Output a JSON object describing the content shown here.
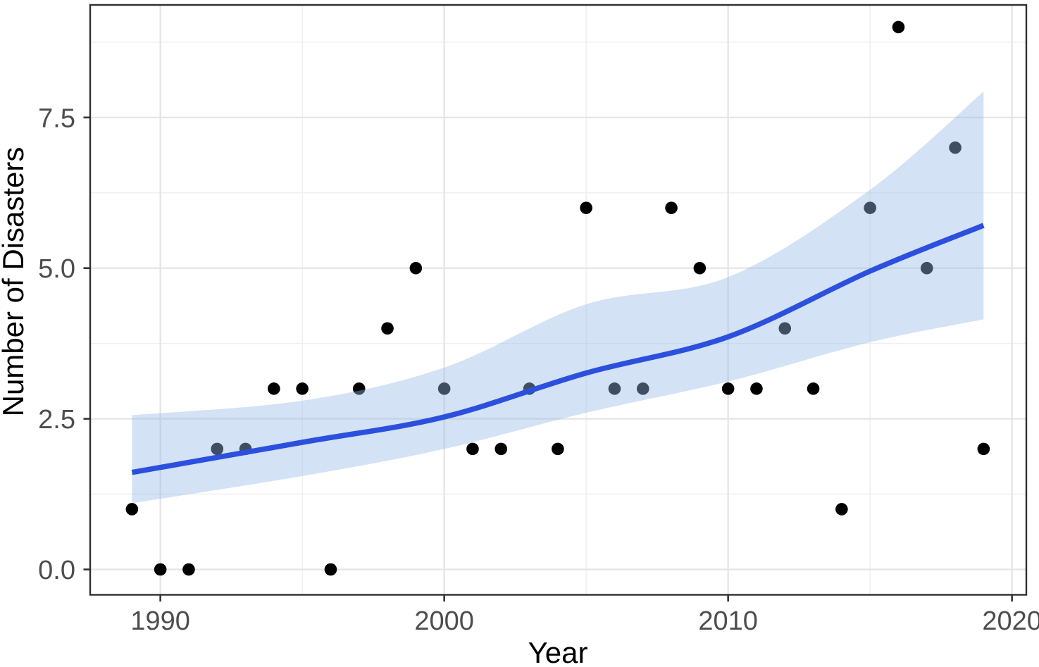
{
  "chart_data": {
    "type": "scatter",
    "title": "",
    "xlabel": "Year",
    "ylabel": "Number of Disasters",
    "x_tick_labels": [
      "1990",
      "2000",
      "2010",
      "2020"
    ],
    "x_tick_values": [
      1990,
      2000,
      2010,
      2020
    ],
    "x_minor_gridlines": [
      1995,
      2005,
      2015
    ],
    "y_tick_labels": [
      "0.0",
      "2.5",
      "5.0",
      "7.5"
    ],
    "y_tick_values": [
      0,
      2.5,
      5,
      7.5
    ],
    "y_minor_gridlines": [
      1.25,
      3.75,
      6.25,
      8.75
    ],
    "xlim": [
      1987.5,
      2020.5
    ],
    "ylim": [
      -0.42,
      9.37
    ],
    "grid": "major-and-minor",
    "legend_position": "none",
    "points": {
      "x": [
        1989,
        1990,
        1991,
        1992,
        1993,
        1994,
        1995,
        1996,
        1997,
        1998,
        1999,
        2000,
        2001,
        2002,
        2003,
        2004,
        2005,
        2006,
        2007,
        2008,
        2009,
        2010,
        2011,
        2012,
        2013,
        2014,
        2015,
        2016,
        2017,
        2018,
        2019
      ],
      "y": [
        1,
        0,
        0,
        2,
        2,
        3,
        3,
        0,
        3,
        4,
        5,
        3,
        2,
        2,
        3,
        2,
        6,
        3,
        3,
        6,
        5,
        3,
        3,
        4,
        3,
        1,
        6,
        9,
        5,
        7,
        2
      ]
    },
    "smooth_line": {
      "x": [
        1989,
        1995,
        2000,
        2005,
        2010,
        2015,
        2019
      ],
      "y": [
        1.61,
        2.11,
        2.53,
        3.26,
        3.86,
        4.95,
        5.71
      ]
    },
    "confidence_band": {
      "x": [
        1989,
        1995,
        2000,
        2005,
        2010,
        2015,
        2019
      ],
      "upper": [
        2.56,
        2.8,
        3.35,
        4.4,
        4.85,
        6.3,
        7.93
      ],
      "lower": [
        1.1,
        1.55,
        2.0,
        2.6,
        3.12,
        3.77,
        4.15
      ]
    },
    "colors": {
      "line": "#2c50dd",
      "band": "rgba(150,186,232,0.42)",
      "point": "#000000",
      "grid_major": "#e4e4e4",
      "grid_minor": "#efefef",
      "panel_border": "#2f2f2f",
      "tick_mark": "#333333",
      "tick_label": "#4d4d4d",
      "axis_title": "#000000",
      "background": "#ffffff"
    }
  }
}
